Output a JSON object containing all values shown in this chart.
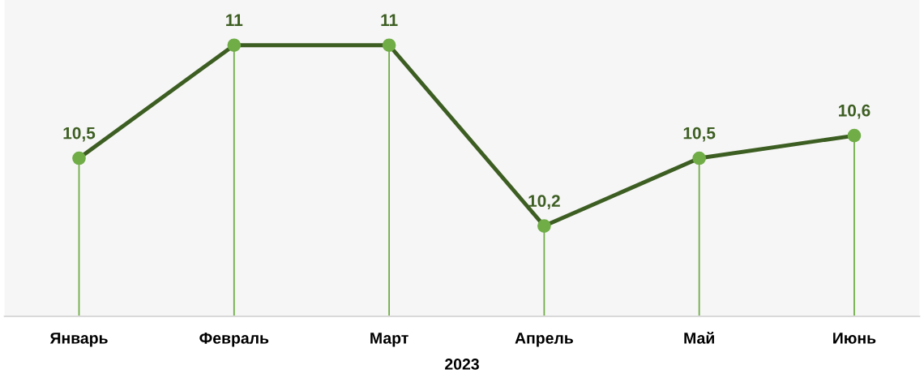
{
  "chart_data": {
    "type": "line",
    "xlabel": "2023",
    "categories": [
      "Январь",
      "Февраль",
      "Март",
      "Апрель",
      "Май",
      "Июнь"
    ],
    "series": [
      {
        "color": "#3d5e22",
        "values": [
          10.5,
          11,
          11,
          10.2,
          10.5,
          10.6
        ],
        "value_labels": [
          "10,5",
          "11",
          "11",
          "10,2",
          "10,5",
          "10,6"
        ]
      }
    ],
    "tick_labels": "x",
    "grid": "x",
    "marker": "circle",
    "line_style": "solid"
  }
}
